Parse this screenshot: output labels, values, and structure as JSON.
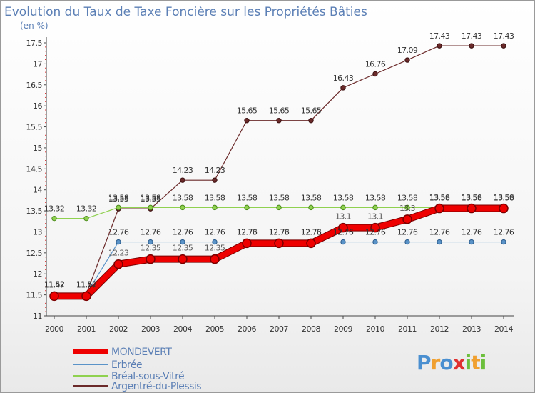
{
  "chart_data": {
    "type": "line",
    "title": "Evolution du Taux de Taxe Foncière sur les Propriétés Bâties",
    "subtitle": "(en %)",
    "xlabel": "",
    "ylabel": "(en %)",
    "ylim": [
      11,
      17.5
    ],
    "yticks": [
      "11",
      "11.5",
      "12",
      "12.5",
      "13",
      "13.5",
      "14",
      "14.5",
      "15",
      "15.5",
      "16",
      "16.5",
      "17",
      "17.5"
    ],
    "grid": false,
    "x": [
      "2000",
      "2001",
      "2002",
      "2003",
      "2004",
      "2005",
      "2006",
      "2007",
      "2008",
      "2009",
      "2010",
      "2011",
      "2012",
      "2013",
      "2014"
    ],
    "series": [
      {
        "name": "MONDEVERT",
        "color": "#ee0000",
        "labels_visible": false,
        "values": [
          11.47,
          11.47,
          12.23,
          12.35,
          12.35,
          12.35,
          12.73,
          12.73,
          12.73,
          13.1,
          13.1,
          13.3,
          13.56,
          13.56,
          13.56
        ],
        "labels": [
          "11.47",
          "11.47",
          "12.23",
          "12.35",
          "12.35",
          "12.35",
          "12.73",
          "12.73",
          "12.73",
          "13.1",
          "13.1",
          "13.3",
          "13.56",
          "13.56",
          "13.56"
        ]
      },
      {
        "name": "Erbrée",
        "color": "#5a93c8",
        "labels_visible": true,
        "values": [
          11.52,
          11.52,
          12.76,
          12.76,
          12.76,
          12.76,
          12.76,
          12.76,
          12.76,
          12.76,
          12.76,
          12.76,
          12.76,
          12.76,
          12.76
        ],
        "labels": [
          "11.52",
          "11.52",
          "12.76",
          "12.76",
          "12.76",
          "12.76",
          "12.76",
          "12.76",
          "12.76",
          "12.76",
          "12.76",
          "12.76",
          "12.76",
          "12.76",
          "12.76"
        ]
      },
      {
        "name": "Bréal-sous-Vitré",
        "color": "#8fd14f",
        "labels_visible": true,
        "values": [
          13.32,
          13.32,
          13.58,
          13.58,
          13.58,
          13.58,
          13.58,
          13.58,
          13.58,
          13.58,
          13.58,
          13.58,
          13.58,
          13.58,
          13.58
        ],
        "labels": [
          "13.32",
          "13.32",
          "13.58",
          "13.58",
          "13.58",
          "13.58",
          "13.58",
          "13.58",
          "13.58",
          "13.58",
          "13.58",
          "13.58",
          "13.58",
          "13.58",
          "13.58"
        ]
      },
      {
        "name": "Argentré-du-Plessis",
        "color": "#6b2a2a",
        "labels_visible": true,
        "values": [
          11.52,
          11.52,
          13.55,
          13.55,
          14.23,
          14.23,
          15.65,
          15.65,
          15.65,
          16.43,
          16.76,
          17.09,
          17.43,
          17.43,
          17.43
        ],
        "labels": [
          "11.52",
          "11.52",
          "13.55",
          "13.55",
          "14.23",
          "14.23",
          "15.65",
          "15.65",
          "15.65",
          "16.43",
          "16.76",
          "17.09",
          "17.43",
          "17.43",
          "17.43"
        ]
      }
    ],
    "legend_position": "bottom-left"
  },
  "branding": {
    "logo_letters": [
      "P",
      "r",
      "o",
      "x",
      "i",
      "t",
      "i"
    ],
    "logo_colors": [
      "#4a8fd0",
      "#f0a030",
      "#4a8fd0",
      "#e03030",
      "#6cbf3c",
      "#f0a030",
      "#6cbf3c"
    ]
  }
}
